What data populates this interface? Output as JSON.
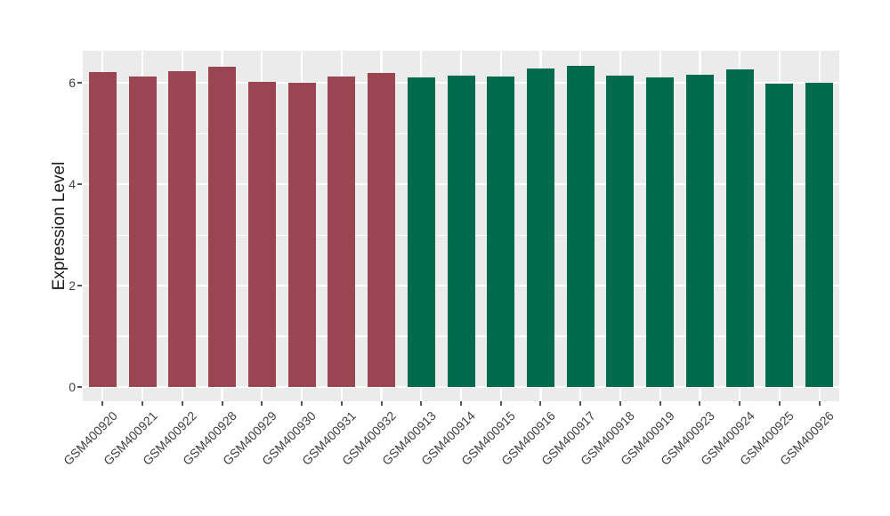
{
  "figure": {
    "background": "#FFFFFF"
  },
  "chart_data": {
    "type": "bar",
    "title": "",
    "xlabel": "",
    "ylabel": "Expression Level",
    "ylim": [
      0,
      6.64
    ],
    "y_ticks": [
      0,
      2,
      4,
      6
    ],
    "y_minor_ticks": [
      1,
      3,
      5
    ],
    "grid": true,
    "legend_position": "none",
    "panel_background": "#EBEBEB",
    "grid_color": "#FFFFFF",
    "tick_label_color": "#404040",
    "group_colors": {
      "maroon": "#9C4552",
      "green": "#006B4C"
    },
    "categories": [
      "GSM400920",
      "GSM400921",
      "GSM400922",
      "GSM400928",
      "GSM400929",
      "GSM400930",
      "GSM400931",
      "GSM400932",
      "GSM400913",
      "GSM400914",
      "GSM400915",
      "GSM400916",
      "GSM400917",
      "GSM400918",
      "GSM400919",
      "GSM400923",
      "GSM400924",
      "GSM400925",
      "GSM400926"
    ],
    "bars": [
      {
        "label": "GSM400920",
        "value": 6.21,
        "group": "maroon"
      },
      {
        "label": "GSM400921",
        "value": 6.13,
        "group": "maroon"
      },
      {
        "label": "GSM400922",
        "value": 6.24,
        "group": "maroon"
      },
      {
        "label": "GSM400928",
        "value": 6.33,
        "group": "maroon"
      },
      {
        "label": "GSM400929",
        "value": 6.03,
        "group": "maroon"
      },
      {
        "label": "GSM400930",
        "value": 6.0,
        "group": "maroon"
      },
      {
        "label": "GSM400931",
        "value": 6.13,
        "group": "maroon"
      },
      {
        "label": "GSM400932",
        "value": 6.19,
        "group": "maroon"
      },
      {
        "label": "GSM400913",
        "value": 6.11,
        "group": "green"
      },
      {
        "label": "GSM400914",
        "value": 6.15,
        "group": "green"
      },
      {
        "label": "GSM400915",
        "value": 6.12,
        "group": "green"
      },
      {
        "label": "GSM400916",
        "value": 6.28,
        "group": "green"
      },
      {
        "label": "GSM400917",
        "value": 6.34,
        "group": "green"
      },
      {
        "label": "GSM400918",
        "value": 6.14,
        "group": "green"
      },
      {
        "label": "GSM400919",
        "value": 6.11,
        "group": "green"
      },
      {
        "label": "GSM400923",
        "value": 6.17,
        "group": "green"
      },
      {
        "label": "GSM400924",
        "value": 6.26,
        "group": "green"
      },
      {
        "label": "GSM400925",
        "value": 5.99,
        "group": "green"
      },
      {
        "label": "GSM400926",
        "value": 6.0,
        "group": "green"
      }
    ]
  }
}
